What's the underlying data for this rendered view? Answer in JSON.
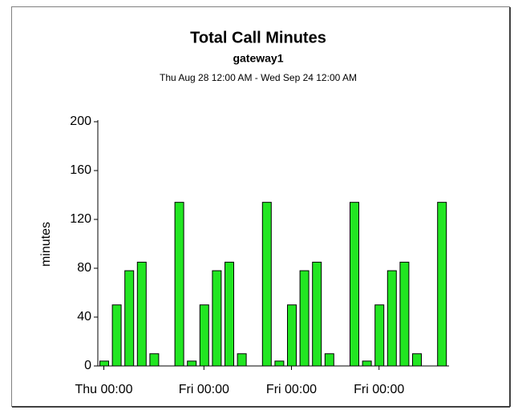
{
  "chart_data": {
    "type": "bar",
    "title": "Total Call Minutes",
    "subtitle": "gateway1",
    "date_range": "Thu Aug 28 12:00 AM - Wed Sep 24 12:00 AM",
    "y_label": "minutes",
    "categories": [
      "Thu 00:00",
      null,
      null,
      null,
      null,
      null,
      null,
      null,
      "Fri 00:00",
      null,
      null,
      null,
      null,
      null,
      null,
      "Fri 00:00",
      null,
      null,
      null,
      null,
      null,
      null,
      "Fri 00:00",
      null,
      null,
      null,
      null,
      null
    ],
    "values": [
      4,
      50,
      78,
      85,
      10,
      0,
      134,
      4,
      50,
      78,
      85,
      10,
      0,
      134,
      4,
      50,
      78,
      85,
      10,
      0,
      134,
      4,
      50,
      78,
      85,
      10,
      0,
      134
    ],
    "color": "#22e622",
    "ylim": [
      0,
      200
    ],
    "yticks": [
      0,
      40,
      80,
      120,
      160,
      200
    ],
    "grid": false
  }
}
